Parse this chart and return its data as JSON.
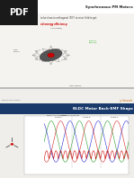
{
  "title_top": "Synchronous PM Motors",
  "title_bottom": "BLDC Motor Back-EMF Shape",
  "top_bg": "#f5f3ef",
  "bottom_bg": "#f0eeea",
  "header_bg_bottom": "#1a3a6b",
  "pdf_bg": "#1a1a1a",
  "running_direction_color": "#00aa00",
  "red_highlight": "#cc0000",
  "phase_colors": [
    "#008800",
    "#0000cc",
    "#cc0000"
  ],
  "chart_bg": "#ffffff",
  "motor_color": "#555555",
  "arrow_color": "#888888",
  "freescale_color": "#cc6600",
  "divider_color": "#bbbbbb",
  "dark_blue": "#1a3a6b"
}
